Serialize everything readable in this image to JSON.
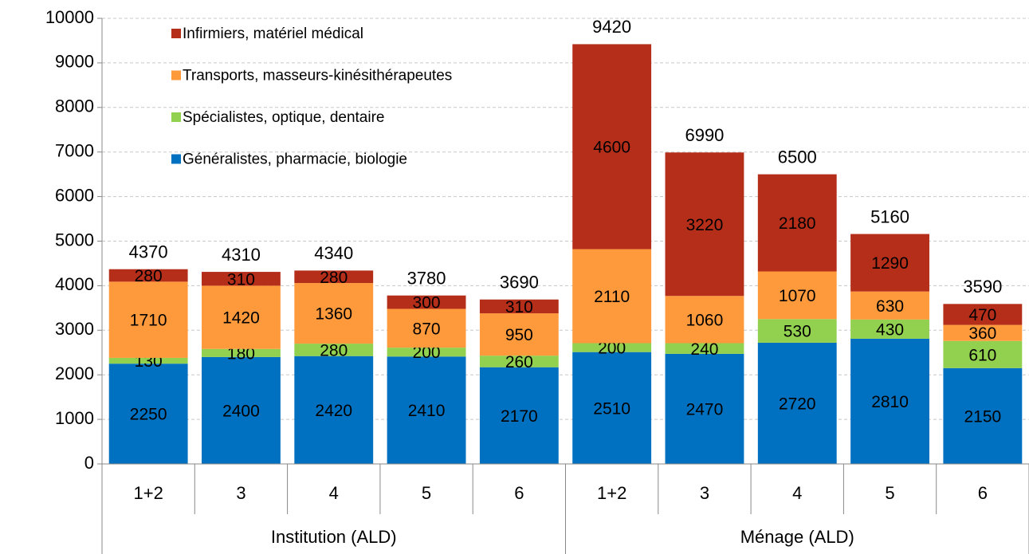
{
  "chart_data": {
    "type": "stacked_bar",
    "categories": [
      "1+2",
      "3",
      "4",
      "5",
      "6",
      "1+2",
      "3",
      "4",
      "5",
      "6"
    ],
    "groups": [
      "Institution (ALD)",
      "Ménage (ALD)"
    ],
    "series": [
      {
        "name": "Généralistes, pharmacie, biologie",
        "color": "#0070c0",
        "values": [
          2250,
          2400,
          2420,
          2410,
          2170,
          2510,
          2470,
          2720,
          2810,
          2150
        ]
      },
      {
        "name": "Spécialistes, optique, dentaire",
        "color": "#92d050",
        "values": [
          130,
          180,
          280,
          200,
          260,
          200,
          240,
          530,
          430,
          610
        ]
      },
      {
        "name": "Transports, masseurs-kinésithérapeutes",
        "color": "#ff9a3c",
        "values": [
          1710,
          1420,
          1360,
          870,
          950,
          2110,
          1060,
          1070,
          630,
          360
        ]
      },
      {
        "name": "Infirmiers, matériel médical",
        "color": "#b52e1a",
        "values": [
          280,
          310,
          280,
          300,
          310,
          4600,
          3220,
          2180,
          1290,
          470
        ]
      }
    ],
    "totals": [
      4370,
      4310,
      4340,
      3780,
      3690,
      9420,
      6990,
      6500,
      5160,
      3590
    ],
    "ylim": [
      0,
      10000
    ],
    "yticks": [
      0,
      1000,
      2000,
      3000,
      4000,
      5000,
      6000,
      7000,
      8000,
      9000,
      10000
    ],
    "grid": true,
    "legend": "upper left"
  }
}
